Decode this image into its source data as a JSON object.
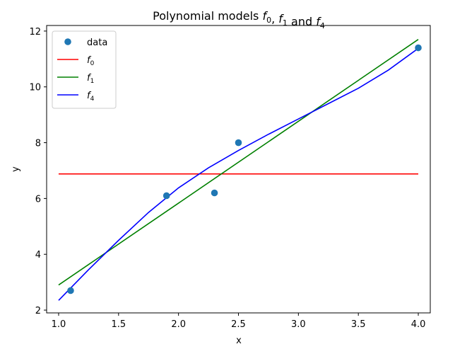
{
  "chart_data": {
    "type": "line",
    "title_main": "Polynomial models ",
    "title_parts": [
      {
        "sym": "f",
        "sub": "0"
      },
      {
        "sep": ", "
      },
      {
        "sym": "f",
        "sub": "1"
      },
      {
        "sep": " and "
      },
      {
        "sym": "f",
        "sub": "4"
      }
    ],
    "xlabel": "x",
    "ylabel": "y",
    "xlim": [
      0.9,
      4.1
    ],
    "ylim": [
      1.9,
      12.2
    ],
    "xticks": [
      1.0,
      1.5,
      2.0,
      2.5,
      3.0,
      3.5,
      4.0
    ],
    "xtick_labels": [
      "1.0",
      "1.5",
      "2.0",
      "2.5",
      "3.0",
      "3.5",
      "4.0"
    ],
    "yticks": [
      2,
      4,
      6,
      8,
      10,
      12
    ],
    "ytick_labels": [
      "2",
      "4",
      "6",
      "8",
      "10",
      "12"
    ],
    "grid": false,
    "legend_position": "upper-left",
    "scatter": {
      "name": "data",
      "color": "#1f77b4",
      "x": [
        1.1,
        1.9,
        2.3,
        2.5,
        4.0
      ],
      "y": [
        2.7,
        6.1,
        6.2,
        8.0,
        11.4
      ]
    },
    "series": [
      {
        "name_sym": "f",
        "name_sub": "0",
        "color": "#ff0000",
        "x": [
          1.0,
          4.0
        ],
        "y": [
          6.88,
          6.88
        ]
      },
      {
        "name_sym": "f",
        "name_sub": "1",
        "color": "#008000",
        "x": [
          1.0,
          4.0
        ],
        "y": [
          2.9,
          11.7
        ]
      },
      {
        "name_sym": "f",
        "name_sub": "4",
        "color": "#0000ff",
        "x": [
          1.0,
          1.25,
          1.5,
          1.75,
          2.0,
          2.25,
          2.5,
          2.75,
          3.0,
          3.25,
          3.5,
          3.75,
          4.0
        ],
        "y": [
          2.35,
          3.45,
          4.5,
          5.5,
          6.38,
          7.1,
          7.72,
          8.3,
          8.85,
          9.4,
          9.95,
          10.6,
          11.38
        ]
      }
    ]
  }
}
